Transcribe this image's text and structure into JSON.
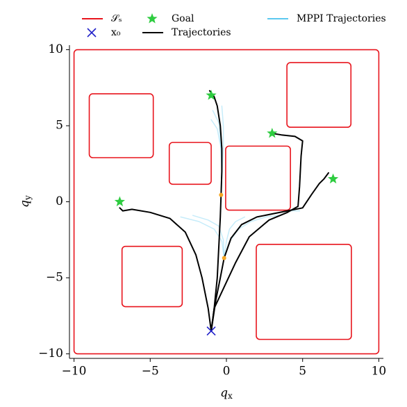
{
  "chart_data": {
    "type": "trajectory",
    "xlabel": "q",
    "xlabel_subscript": "x",
    "ylabel": "q",
    "ylabel_subscript": "y",
    "xlim": [
      -10.3,
      10.3
    ],
    "ylim": [
      -10.3,
      10.3
    ],
    "xticks": [
      {
        "value": -10,
        "label": "−10"
      },
      {
        "value": -5,
        "label": "−5"
      },
      0,
      5,
      10
    ],
    "yticks": [
      {
        "value": -10,
        "label": "−10"
      },
      {
        "value": -5,
        "label": "−5"
      },
      0,
      5,
      10
    ],
    "series": [
      {
        "name": "𝒮ₛ",
        "color": "#e8141c",
        "kind": "rect",
        "rects": [
          [
            -10,
            -10,
            10,
            10
          ],
          [
            -9,
            2.9,
            -4.8,
            7.1
          ],
          [
            -3.75,
            1.15,
            -1.0,
            3.9
          ],
          [
            -0.05,
            -0.55,
            4.2,
            3.66
          ],
          [
            3.97,
            4.9,
            8.17,
            9.15
          ],
          [
            -6.85,
            -6.9,
            -2.9,
            -2.93
          ],
          [
            1.96,
            -9.05,
            8.2,
            -2.8
          ]
        ]
      },
      {
        "name": "x₀",
        "color": "#1f1fc8",
        "kind": "marker",
        "marker": "x",
        "x": [
          -1
        ],
        "y": [
          -8.5
        ]
      },
      {
        "name": "Goal",
        "color": "#2ecc40",
        "kind": "marker",
        "marker": "star",
        "x": [
          -1,
          3,
          7,
          -7
        ],
        "y": [
          7,
          4.5,
          1.5,
          0
        ]
      },
      {
        "name": "Trajectories",
        "color": "#000000",
        "kind": "line",
        "width": 2,
        "lines": [
          {
            "x": [
              -1,
              -0.8,
              -0.6,
              -0.5,
              -0.4,
              -0.35,
              -0.3,
              -0.3,
              -0.4,
              -0.6,
              -0.8,
              -1.1
            ],
            "y": [
              -8.5,
              -7,
              -5,
              -3,
              -1,
              0.45,
              2,
              3.5,
              5,
              6.3,
              6.9,
              7.3
            ]
          },
          {
            "x": [
              -1,
              -0.7,
              -0.4,
              -0.15,
              0.3,
              1,
              2,
              3,
              4,
              5,
              5.6,
              6.1,
              6.4,
              6.7
            ],
            "y": [
              -8.5,
              -6.5,
              -5,
              -3.7,
              -2.4,
              -1.5,
              -1,
              -0.8,
              -0.6,
              -0.4,
              0.5,
              1.2,
              1.5,
              1.9
            ]
          },
          {
            "x": [
              -1,
              -0.8,
              -0.1,
              0.6,
              1.5,
              2.8,
              4,
              4.7,
              4.8,
              4.9,
              5,
              4.5,
              3.6,
              3
            ],
            "y": [
              -8.5,
              -7,
              -5.5,
              -4,
              -2.3,
              -1.2,
              -0.7,
              -0.3,
              1,
              3,
              4,
              4.3,
              4.4,
              4.5
            ]
          },
          {
            "x": [
              -1,
              -1.2,
              -1.6,
              -2,
              -2.7,
              -3.7,
              -5,
              -6.2,
              -6.8,
              -7
            ],
            "y": [
              -8.5,
              -7,
              -5,
              -3.5,
              -2,
              -1.1,
              -0.7,
              -0.5,
              -0.6,
              -0.4
            ]
          }
        ]
      },
      {
        "name": "MPPI Trajectories",
        "color": "#5bc8f0",
        "kind": "line",
        "width": 1.5,
        "opacity": 0.35,
        "lines": [
          {
            "x": [
              -0.35,
              -0.3,
              -0.35,
              -0.6,
              -1
            ],
            "y": [
              0.45,
              2,
              3.5,
              4.8,
              5.4
            ]
          },
          {
            "x": [
              -0.35,
              -0.3,
              -0.3,
              -0.4,
              -0.6
            ],
            "y": [
              0.45,
              2,
              3.5,
              5,
              6.2
            ]
          },
          {
            "x": [
              -0.35,
              -0.28,
              -0.2,
              -0.2,
              -0.3
            ],
            "y": [
              0.45,
              2,
              3.5,
              5,
              6.3
            ]
          },
          {
            "x": [
              -0.35,
              -0.3,
              -0.35,
              -0.5,
              -0.9
            ],
            "y": [
              0.45,
              2,
              3.5,
              5.2,
              6.0
            ]
          },
          {
            "x": [
              -0.15,
              0.3,
              1,
              2,
              3,
              4,
              4.8
            ],
            "y": [
              -3.7,
              -2.4,
              -1.5,
              -1,
              -0.8,
              -0.6,
              -0.6
            ]
          },
          {
            "x": [
              -0.15,
              0.2,
              0.8,
              1.6,
              2.6,
              3.4
            ],
            "y": [
              -3.7,
              -2.6,
              -1.8,
              -1.3,
              -1.0,
              -0.9
            ]
          },
          {
            "x": [
              -0.15,
              -0.3,
              -0.8,
              -1.8,
              -3.0
            ],
            "y": [
              -3.7,
              -2.6,
              -1.8,
              -1.3,
              -1.0
            ]
          },
          {
            "x": [
              -0.15,
              -0.2,
              -0.5,
              -1.2,
              -2.2
            ],
            "y": [
              -3.7,
              -2.5,
              -1.6,
              -1.2,
              -0.9
            ]
          },
          {
            "x": [
              -0.15,
              0,
              0.2,
              0.6,
              1.2
            ],
            "y": [
              -3.7,
              -2.6,
              -1.8,
              -1.3,
              -1.0
            ]
          }
        ]
      }
    ],
    "points": {
      "color": "#f5a623",
      "x": [
        -0.35,
        -0.15
      ],
      "y": [
        0.45,
        -3.7
      ]
    }
  }
}
